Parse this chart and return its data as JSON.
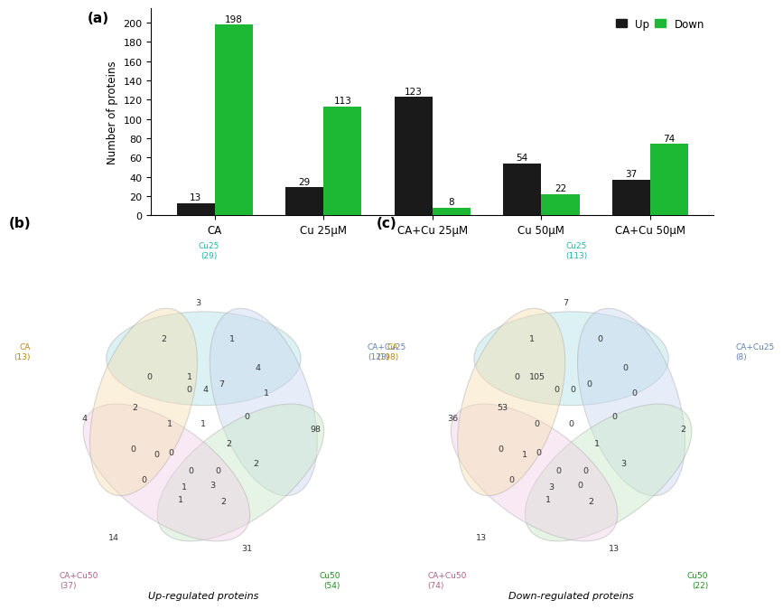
{
  "bar_categories": [
    "CA",
    "Cu 25μM",
    "CA+Cu 25μM",
    "Cu 50μM",
    "CA+Cu 50μM"
  ],
  "up_values": [
    13,
    29,
    123,
    54,
    37
  ],
  "down_values": [
    198,
    113,
    8,
    22,
    74
  ],
  "bar_up_color": "#1a1a1a",
  "bar_down_color": "#1db834",
  "bar_ylabel": "Number of proteins",
  "legend_up": "Up",
  "legend_down": "Down",
  "panel_a_label": "(a)",
  "panel_b_label": "(b)",
  "panel_c_label": "(c)",
  "venn_b_title": "Up-regulated proteins",
  "venn_c_title": "Down-regulated proteins",
  "venn_b_labels": {
    "CA": "CA\n(13)",
    "Cu25": "Cu25\n(29)",
    "CACu25": "CA+Cu25\n(123)",
    "Cu50": "Cu50\n(54)",
    "CACu50": "CA+Cu50\n(37)"
  },
  "venn_c_labels": {
    "CA": "CA\n(198)",
    "Cu25": "Cu25\n(113)",
    "CACu25": "CA+Cu25\n(8)",
    "Cu50": "Cu50\n(22)",
    "CACu50": "CA+Cu50\n(74)"
  },
  "ellipse_colors": {
    "CA": "#f5deb3",
    "Cu25": "#b0e0e6",
    "CACu25": "#c8d8f0",
    "Cu50": "#c8e8c8",
    "CACu50": "#f0d0e8"
  },
  "label_colors": {
    "CA": "#b8860b",
    "Cu25": "#20b2aa",
    "CACu25": "#6080b0",
    "Cu50": "#228B22",
    "CACu50": "#b06080"
  },
  "nums_b": [
    [
      4.85,
      8.0,
      "3"
    ],
    [
      1.7,
      4.8,
      "4"
    ],
    [
      8.1,
      4.5,
      "98"
    ],
    [
      6.2,
      1.2,
      "31"
    ],
    [
      2.5,
      1.5,
      "14"
    ],
    [
      5.0,
      4.65,
      "1"
    ],
    [
      3.9,
      7.0,
      "2"
    ],
    [
      5.8,
      7.0,
      "1"
    ],
    [
      6.5,
      6.2,
      "4"
    ],
    [
      6.75,
      5.5,
      "1"
    ],
    [
      6.45,
      3.55,
      "2"
    ],
    [
      5.55,
      2.5,
      "2"
    ],
    [
      4.35,
      2.55,
      "1"
    ],
    [
      3.35,
      3.1,
      "0"
    ],
    [
      3.05,
      3.95,
      "0"
    ],
    [
      3.1,
      5.1,
      "2"
    ],
    [
      3.5,
      5.95,
      "0"
    ],
    [
      5.5,
      5.75,
      "7"
    ],
    [
      6.2,
      4.85,
      "0"
    ],
    [
      5.7,
      4.1,
      "2"
    ],
    [
      5.4,
      3.35,
      "0"
    ],
    [
      4.65,
      3.35,
      "0"
    ],
    [
      4.1,
      3.85,
      "0"
    ],
    [
      4.05,
      4.65,
      "1"
    ],
    [
      4.6,
      5.6,
      "0"
    ],
    [
      5.05,
      5.6,
      "4"
    ],
    [
      4.6,
      5.95,
      "1"
    ],
    [
      5.25,
      2.95,
      "3"
    ],
    [
      4.45,
      2.9,
      "1"
    ],
    [
      3.7,
      3.8,
      "0"
    ]
  ],
  "nums_c": [
    [
      4.85,
      8.0,
      "7"
    ],
    [
      1.7,
      4.8,
      "36"
    ],
    [
      8.1,
      4.5,
      "2"
    ],
    [
      6.2,
      1.2,
      "13"
    ],
    [
      2.5,
      1.5,
      "13"
    ],
    [
      5.0,
      4.65,
      "0"
    ],
    [
      3.9,
      7.0,
      "1"
    ],
    [
      5.8,
      7.0,
      "0"
    ],
    [
      6.5,
      6.2,
      "0"
    ],
    [
      6.75,
      5.5,
      "0"
    ],
    [
      6.45,
      3.55,
      "3"
    ],
    [
      5.55,
      2.5,
      "2"
    ],
    [
      4.35,
      2.55,
      "1"
    ],
    [
      3.35,
      3.1,
      "0"
    ],
    [
      3.05,
      3.95,
      "0"
    ],
    [
      3.1,
      5.1,
      "53"
    ],
    [
      3.5,
      5.95,
      "0"
    ],
    [
      5.5,
      5.75,
      "0"
    ],
    [
      6.2,
      4.85,
      "0"
    ],
    [
      5.7,
      4.1,
      "1"
    ],
    [
      5.4,
      3.35,
      "0"
    ],
    [
      4.65,
      3.35,
      "0"
    ],
    [
      4.1,
      3.85,
      "0"
    ],
    [
      4.05,
      4.65,
      "0"
    ],
    [
      4.6,
      5.6,
      "0"
    ],
    [
      5.05,
      5.6,
      "0"
    ],
    [
      4.05,
      5.95,
      "105"
    ],
    [
      5.25,
      2.95,
      "0"
    ],
    [
      4.45,
      2.9,
      "3"
    ],
    [
      3.7,
      3.8,
      "1"
    ]
  ]
}
